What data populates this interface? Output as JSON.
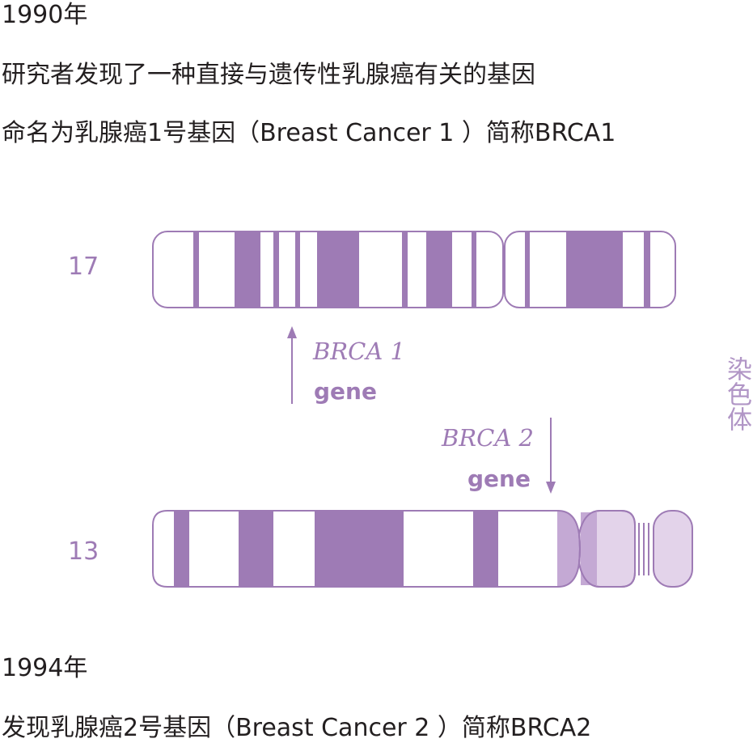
{
  "text": {
    "year1": "1990年",
    "line1": "研究者发现了一种直接与遗传性乳腺癌有关的基因",
    "line2": "命名为乳腺癌1号基因（Breast Cancer 1 ）简称BRCA1",
    "year2": "1994年",
    "line3": "发现乳腺癌2号基因（Breast Cancer 2 ）简称BRCA2"
  },
  "diagram": {
    "chromosome_17_label": "17",
    "chromosome_13_label": "13",
    "brca1": {
      "name": "BRCA 1",
      "word": "gene"
    },
    "brca2": {
      "name": "BRCA 2",
      "word": "gene"
    },
    "side_label": "染色体",
    "colors": {
      "band_dark": "#9e7bb5",
      "band_mid": "#c4a9d4",
      "band_light": "#e3d3ea",
      "outline": "#9e7bb5"
    }
  }
}
